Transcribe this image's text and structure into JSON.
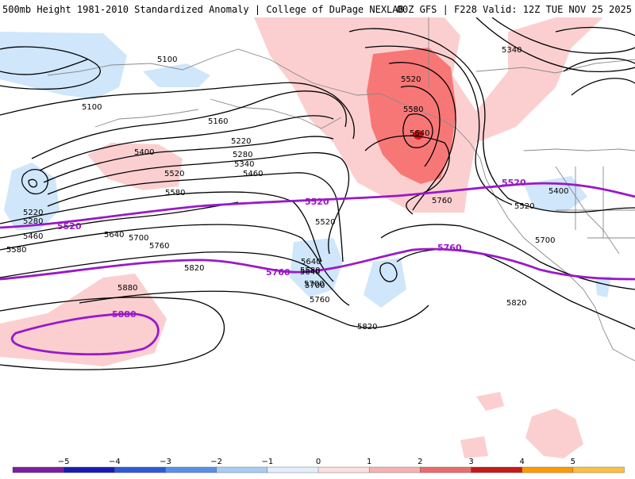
{
  "header": {
    "left_title": "500mb Height 1981-2010 Standardized Anomaly | College of DuPage NEXLAB",
    "right_title": "00Z GFS | F228 Valid: 12Z TUE NOV 25 2025"
  },
  "colors": {
    "neg_light": "#cfe6fb",
    "pos_light": "#fbcfd0",
    "pos_mid": "#f77777",
    "pos_strong": "#e01010",
    "contour": "#000000",
    "highlight_contour": "#9a19c8",
    "coast": "#8a8a8a"
  },
  "contour_labels": [
    "5100",
    "5100",
    "5160",
    "5220",
    "5280",
    "5340",
    "5400",
    "5460",
    "5520",
    "5580",
    "5640",
    "5700",
    "5760",
    "5820",
    "5880",
    "5220",
    "5280",
    "5460",
    "5580",
    "5640",
    "5700",
    "5760",
    "5820",
    "5520",
    "5580",
    "5640",
    "5400",
    "5520",
    "5700",
    "5760",
    "5820",
    "5340",
    "5520",
    "5580",
    "5640",
    "5700"
  ],
  "highlight_labels": [
    "5520",
    "5520",
    "5520",
    "5760",
    "5760",
    "5880"
  ],
  "colorbar": {
    "ticks": [
      "−5",
      "−4",
      "−3",
      "−2",
      "−1",
      "0",
      "1",
      "2",
      "3",
      "4",
      "5"
    ],
    "colors": [
      "#7a1fa0",
      "#1a1ab4",
      "#2d59d8",
      "#5a8fe8",
      "#a8cdf4",
      "#e4effb",
      "#fce0e0",
      "#f6b3b3",
      "#ec6b6b",
      "#c81818",
      "#ff9a00",
      "#ffc040"
    ]
  }
}
